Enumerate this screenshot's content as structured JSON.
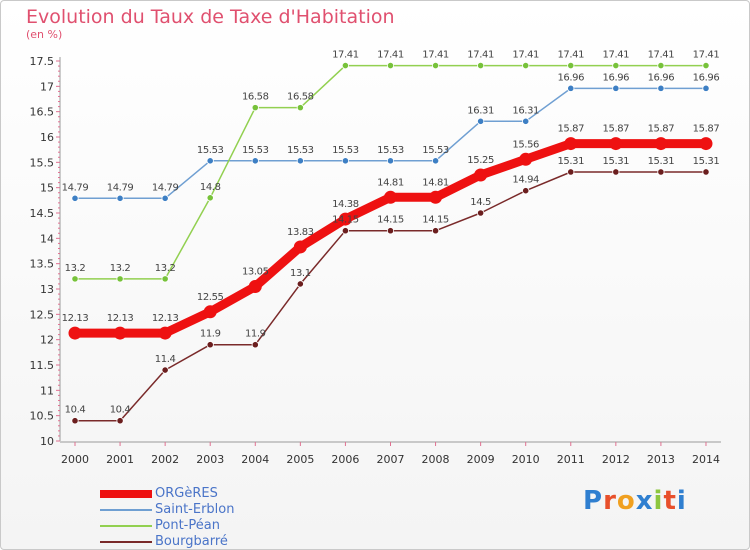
{
  "title": "Evolution du Taux de Taxe d'Habitation",
  "unit": "(en %)",
  "logo": {
    "text": "Proxiti",
    "letters": [
      "P",
      "r",
      "o",
      "x",
      "i",
      "t",
      "i"
    ],
    "colors": [
      "#2f7fd0",
      "#e8502b",
      "#f0a020",
      "#2f7fd0",
      "#8dc63f",
      "#e8502b",
      "#2f7fd0"
    ]
  },
  "chart_data": {
    "type": "line",
    "title": "Evolution du Taux de Taxe d'Habitation",
    "ylabel": "(en %)",
    "xlabel": "",
    "ylim": [
      10,
      17.5
    ],
    "yticks": [
      "10",
      "10.5",
      "11",
      "11.5",
      "12",
      "12.5",
      "13",
      "13.5",
      "14",
      "14.5",
      "15",
      "15.5",
      "16",
      "16.5",
      "17",
      "17.5"
    ],
    "categories": [
      "2000",
      "2001",
      "2002",
      "2003",
      "2004",
      "2005",
      "2006",
      "2007",
      "2008",
      "2009",
      "2010",
      "2011",
      "2012",
      "2013",
      "2014"
    ],
    "series": [
      {
        "name": "Saint-Erblon",
        "color": "#6f9fd2",
        "point": "#3d7fc4",
        "values": [
          14.79,
          14.79,
          14.79,
          15.53,
          15.53,
          15.53,
          15.53,
          15.53,
          15.53,
          16.31,
          16.31,
          16.96,
          16.96,
          16.96,
          16.96
        ],
        "labels": [
          "14.79",
          "14.79",
          "14.79",
          "15.53",
          "15.53",
          "15.53",
          "15.53",
          "15.53",
          "15.53",
          "16.31",
          "16.31",
          "16.96",
          "16.96",
          "16.96",
          "16.96"
        ]
      },
      {
        "name": "Pont-Péan",
        "color": "#92d050",
        "point": "#77c23a",
        "values": [
          13.2,
          13.2,
          13.2,
          14.8,
          16.58,
          16.58,
          17.41,
          17.41,
          17.41,
          17.41,
          17.41,
          17.41,
          17.41,
          17.41,
          17.41
        ],
        "labels": [
          "13.2",
          "13.2",
          "13.2",
          "14.8",
          "16.58",
          "16.58",
          "17.41",
          "17.41",
          "17.41",
          "17.41",
          "17.41",
          "17.41",
          "17.41",
          "17.41",
          "17.41"
        ]
      },
      {
        "name": "Bourgbarré",
        "color": "#7a2a2a",
        "point": "#6b1e1e",
        "values": [
          10.4,
          10.4,
          11.4,
          11.9,
          11.9,
          13.1,
          14.15,
          14.15,
          14.15,
          14.5,
          14.94,
          15.31,
          15.31,
          15.31,
          15.31
        ],
        "labels": [
          "10.4",
          "10.4",
          "11.4",
          "11.9",
          "11.9",
          "13.1",
          "14.15",
          "14.15",
          "14.15",
          "14.5",
          "14.94",
          "15.31",
          "15.31",
          "15.31",
          "15.31"
        ]
      },
      {
        "name": "ORGèRES",
        "color": "#ee1111",
        "point": "#ee1111",
        "values": [
          12.13,
          12.13,
          12.13,
          12.55,
          13.05,
          13.83,
          14.38,
          14.81,
          14.81,
          15.25,
          15.56,
          15.87,
          15.87,
          15.87,
          15.87
        ],
        "labels": [
          "12.13",
          "12.13",
          "12.13",
          "12.55",
          "13.05",
          "13.83",
          "14.38",
          "14.81",
          "14.81",
          "15.25",
          "15.56",
          "15.87",
          "15.87",
          "15.87",
          "15.87"
        ]
      }
    ],
    "legend": [
      "ORGèRES",
      "Saint-Erblon",
      "Pont-Péan",
      "Bourgbarré"
    ],
    "grid": false
  }
}
